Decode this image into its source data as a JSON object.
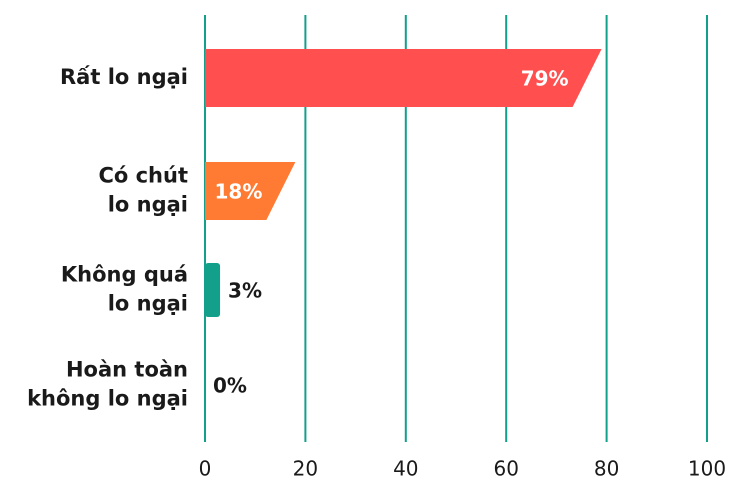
{
  "chart_data": {
    "type": "bar",
    "orientation": "horizontal",
    "categories": [
      "Rất lo ngại",
      "Có chút\nlo ngại",
      "Không quá\nlo ngại",
      "Hoàn toàn\nkhông lo ngại"
    ],
    "values": [
      79,
      18,
      3,
      0
    ],
    "value_labels": [
      "79%",
      "18%",
      "3%",
      "0%"
    ],
    "colors": [
      "#ff4f4f",
      "#ff7a33",
      "#13a08b",
      "#13a08b"
    ],
    "xlim": [
      0,
      100
    ],
    "xticks": [
      0,
      20,
      40,
      60,
      80,
      100
    ],
    "grid": true,
    "grid_color": "#13a08b"
  }
}
